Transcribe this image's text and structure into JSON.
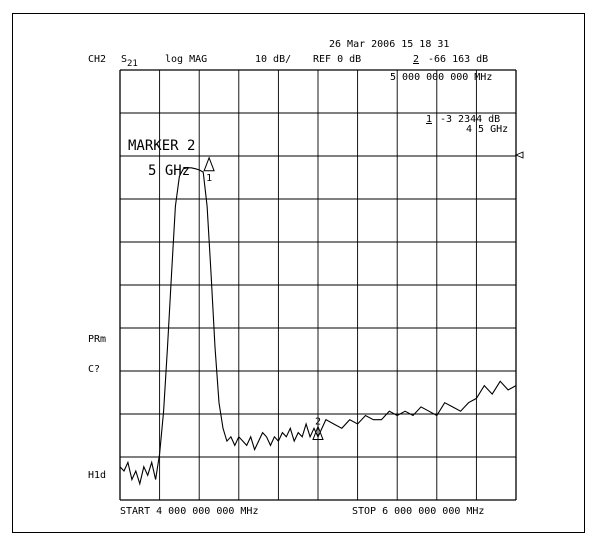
{
  "header": {
    "date_time": "26 Mar 2006  15 18 31",
    "channel": "CH2",
    "param_base": "S",
    "param_sub": "21",
    "format": "log MAG",
    "scale": "10 dB/",
    "ref": "REF 0 dB",
    "marker2_index": "2",
    "marker2_value": "-66 163 dB"
  },
  "readout": {
    "marker_freq": "5 000 000 000 MHz",
    "marker1_index": "1",
    "marker1_value": "-3 2344 dB",
    "marker1_freq": "4 5 GHz"
  },
  "marker_label": {
    "line1": "MARKER 2",
    "line2": "5 GHz"
  },
  "side_labels": {
    "prm": "PRm",
    "cq": "C?",
    "hld": "H1d"
  },
  "footer": {
    "start": "START 4 000 000 000 MHz",
    "stop": "STOP 6 000 000 000 MHz"
  },
  "chart_data": {
    "type": "line",
    "title": "",
    "xlabel": "",
    "ylabel": "",
    "xlim": [
      4000,
      6000
    ],
    "ylim": [
      -80,
      0
    ],
    "grid": true,
    "x_unit": "MHz",
    "y_unit": "dB",
    "series": [
      {
        "x": [
          4000,
          4020,
          4040,
          4060,
          4080,
          4100,
          4120,
          4140,
          4160,
          4180,
          4200,
          4220,
          4240,
          4260,
          4280,
          4300,
          4320,
          4340,
          4360,
          4380,
          4400,
          4420,
          4440,
          4460,
          4480,
          4500,
          4520,
          4540,
          4560,
          4580,
          4600,
          4620,
          4640,
          4660,
          4680,
          4700,
          4720,
          4740,
          4760,
          4780,
          4800,
          4820,
          4840,
          4860,
          4880,
          4900,
          4920,
          4940,
          4960,
          4980,
          5000,
          5040,
          5080,
          5120,
          5160,
          5200,
          5240,
          5280,
          5320,
          5360,
          5400,
          5440,
          5480,
          5520,
          5560,
          5600,
          5640,
          5680,
          5720,
          5760,
          5800,
          5840,
          5880,
          5920,
          5960,
          6000
        ],
        "y": [
          -73,
          -74,
          -72,
          -76,
          -74,
          -77,
          -73,
          -75,
          -72,
          -76,
          -70,
          -60,
          -45,
          -28,
          -12,
          -5,
          -3.2,
          -3,
          -3,
          -3.2,
          -3.5,
          -4,
          -12,
          -28,
          -45,
          -58,
          -64,
          -67,
          -66,
          -68,
          -66,
          -67,
          -68,
          -66,
          -69,
          -67,
          -65,
          -66,
          -68,
          -66,
          -67,
          -65,
          -66,
          -64,
          -67,
          -65,
          -66,
          -63,
          -66,
          -64,
          -66,
          -62,
          -63,
          -64,
          -62,
          -63,
          -61,
          -62,
          -62,
          -60,
          -61,
          -60,
          -61,
          -59,
          -60,
          -61,
          -58,
          -59,
          -60,
          -58,
          -57,
          -54,
          -56,
          -53,
          -55,
          -54
        ]
      }
    ],
    "markers": [
      {
        "label": "1",
        "x": 4450,
        "y": -3.2344
      },
      {
        "label": "2",
        "x": 5000,
        "y": -66.163
      }
    ]
  }
}
